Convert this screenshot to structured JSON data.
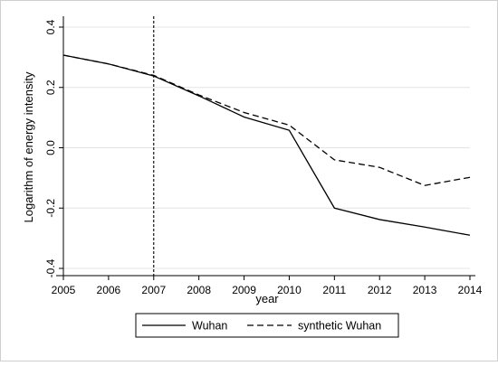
{
  "chart_data": {
    "type": "line",
    "xlabel": "year",
    "ylabel": "Logarithm of energy intensity",
    "x": [
      2005,
      2006,
      2007,
      2008,
      2009,
      2010,
      2011,
      2012,
      2013,
      2014
    ],
    "xlim": [
      2005,
      2014
    ],
    "ylim": [
      -0.4,
      0.4
    ],
    "yticks": [
      -0.4,
      -0.2,
      0.0,
      0.2,
      0.4
    ],
    "ytick_labels": [
      "-0.4",
      "-0.2",
      "0.0",
      "0.2",
      "0.4"
    ],
    "grid": "horizontal",
    "legend_position": "bottom",
    "reference_line": {
      "x": 2007,
      "style": "dotted"
    },
    "series": [
      {
        "name": "Wuhan",
        "style": "solid",
        "color": "#000000",
        "values": [
          0.307,
          0.278,
          0.238,
          0.172,
          0.102,
          0.058,
          -0.2,
          -0.238,
          -0.263,
          -0.29
        ]
      },
      {
        "name": "synthetic Wuhan",
        "style": "dashed",
        "color": "#000000",
        "values": [
          0.307,
          0.278,
          0.24,
          0.175,
          0.117,
          0.075,
          -0.04,
          -0.065,
          -0.125,
          -0.098
        ]
      }
    ]
  }
}
